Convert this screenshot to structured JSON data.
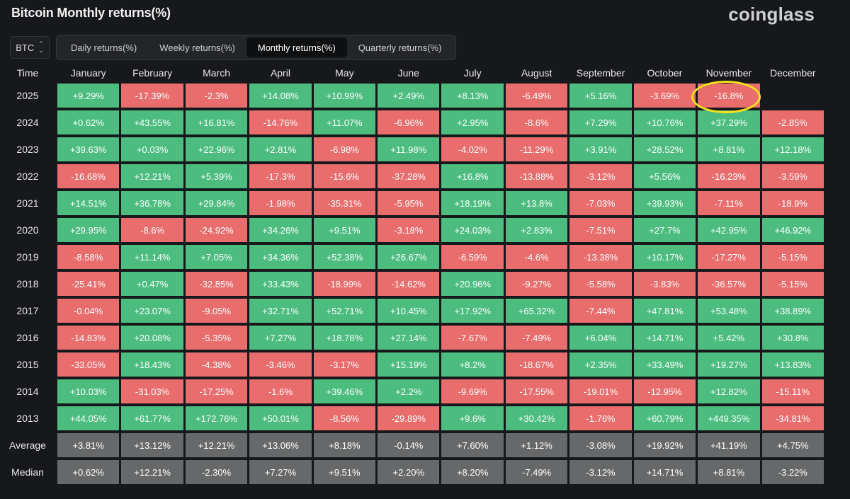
{
  "header": {
    "title": "Bitcoin Monthly returns(%)",
    "logo": "coinglass"
  },
  "controls": {
    "symbol": "BTC",
    "tabs": [
      {
        "label": "Daily returns(%)",
        "active": false
      },
      {
        "label": "Weekly returns(%)",
        "active": false
      },
      {
        "label": "Monthly returns(%)",
        "active": true
      },
      {
        "label": "Quarterly returns(%)",
        "active": false
      }
    ]
  },
  "colors": {
    "positive": "#4cbd7f",
    "negative": "#ea6d6e",
    "stat": "#676869",
    "highlight": "#f6e21b"
  },
  "table": {
    "time_header": "Time",
    "months": [
      "January",
      "February",
      "March",
      "April",
      "May",
      "June",
      "July",
      "August",
      "September",
      "October",
      "November",
      "December"
    ],
    "rows": [
      {
        "label": "2025",
        "values": [
          "+9.29%",
          "-17.39%",
          "-2.3%",
          "+14.08%",
          "+10.99%",
          "+2.49%",
          "+8.13%",
          "-6.49%",
          "+5.16%",
          "-3.69%",
          "-16.8%",
          ""
        ]
      },
      {
        "label": "2024",
        "values": [
          "+0.62%",
          "+43.55%",
          "+16.81%",
          "-14.76%",
          "+11.07%",
          "-6.96%",
          "+2.95%",
          "-8.6%",
          "+7.29%",
          "+10.76%",
          "+37.29%",
          "-2.85%"
        ]
      },
      {
        "label": "2023",
        "values": [
          "+39.63%",
          "+0.03%",
          "+22.96%",
          "+2.81%",
          "-6.98%",
          "+11.98%",
          "-4.02%",
          "-11.29%",
          "+3.91%",
          "+28.52%",
          "+8.81%",
          "+12.18%"
        ]
      },
      {
        "label": "2022",
        "values": [
          "-16.68%",
          "+12.21%",
          "+5.39%",
          "-17.3%",
          "-15.6%",
          "-37.28%",
          "+16.8%",
          "-13.88%",
          "-3.12%",
          "+5.56%",
          "-16.23%",
          "-3.59%"
        ]
      },
      {
        "label": "2021",
        "values": [
          "+14.51%",
          "+36.78%",
          "+29.84%",
          "-1.98%",
          "-35.31%",
          "-5.95%",
          "+18.19%",
          "+13.8%",
          "-7.03%",
          "+39.93%",
          "-7.11%",
          "-18.9%"
        ]
      },
      {
        "label": "2020",
        "values": [
          "+29.95%",
          "-8.6%",
          "-24.92%",
          "+34.26%",
          "+9.51%",
          "-3.18%",
          "+24.03%",
          "+2.83%",
          "-7.51%",
          "+27.7%",
          "+42.95%",
          "+46.92%"
        ]
      },
      {
        "label": "2019",
        "values": [
          "-8.58%",
          "+11.14%",
          "+7.05%",
          "+34.36%",
          "+52.38%",
          "+26.67%",
          "-6.59%",
          "-4.6%",
          "-13.38%",
          "+10.17%",
          "-17.27%",
          "-5.15%"
        ]
      },
      {
        "label": "2018",
        "values": [
          "-25.41%",
          "+0.47%",
          "-32.85%",
          "+33.43%",
          "-18.99%",
          "-14.62%",
          "+20.96%",
          "-9.27%",
          "-5.58%",
          "-3.83%",
          "-36.57%",
          "-5.15%"
        ]
      },
      {
        "label": "2017",
        "values": [
          "-0.04%",
          "+23.07%",
          "-9.05%",
          "+32.71%",
          "+52.71%",
          "+10.45%",
          "+17.92%",
          "+65.32%",
          "-7.44%",
          "+47.81%",
          "+53.48%",
          "+38.89%"
        ]
      },
      {
        "label": "2016",
        "values": [
          "-14.83%",
          "+20.08%",
          "-5.35%",
          "+7.27%",
          "+18.78%",
          "+27.14%",
          "-7.67%",
          "-7.49%",
          "+6.04%",
          "+14.71%",
          "+5.42%",
          "+30.8%"
        ]
      },
      {
        "label": "2015",
        "values": [
          "-33.05%",
          "+18.43%",
          "-4.38%",
          "-3.46%",
          "-3.17%",
          "+15.19%",
          "+8.2%",
          "-18.67%",
          "+2.35%",
          "+33.49%",
          "+19.27%",
          "+13.83%"
        ]
      },
      {
        "label": "2014",
        "values": [
          "+10.03%",
          "-31.03%",
          "-17.25%",
          "-1.6%",
          "+39.46%",
          "+2.2%",
          "-9.69%",
          "-17.55%",
          "-19.01%",
          "-12.95%",
          "+12.82%",
          "-15.11%"
        ]
      },
      {
        "label": "2013",
        "values": [
          "+44.05%",
          "+61.77%",
          "+172.76%",
          "+50.01%",
          "-8.56%",
          "-29.89%",
          "+9.6%",
          "+30.42%",
          "-1.76%",
          "+60.79%",
          "+449.35%",
          "-34.81%"
        ]
      }
    ],
    "stats": [
      {
        "label": "Average",
        "values": [
          "+3.81%",
          "+13.12%",
          "+12.21%",
          "+13.06%",
          "+8.18%",
          "-0.14%",
          "+7.60%",
          "+1.12%",
          "-3.08%",
          "+19.92%",
          "+41.19%",
          "+4.75%"
        ]
      },
      {
        "label": "Median",
        "values": [
          "+0.62%",
          "+12.21%",
          "-2.30%",
          "+7.27%",
          "+9.51%",
          "+2.20%",
          "+8.20%",
          "-7.49%",
          "-3.12%",
          "+14.71%",
          "+8.81%",
          "-3.22%"
        ]
      }
    ]
  }
}
